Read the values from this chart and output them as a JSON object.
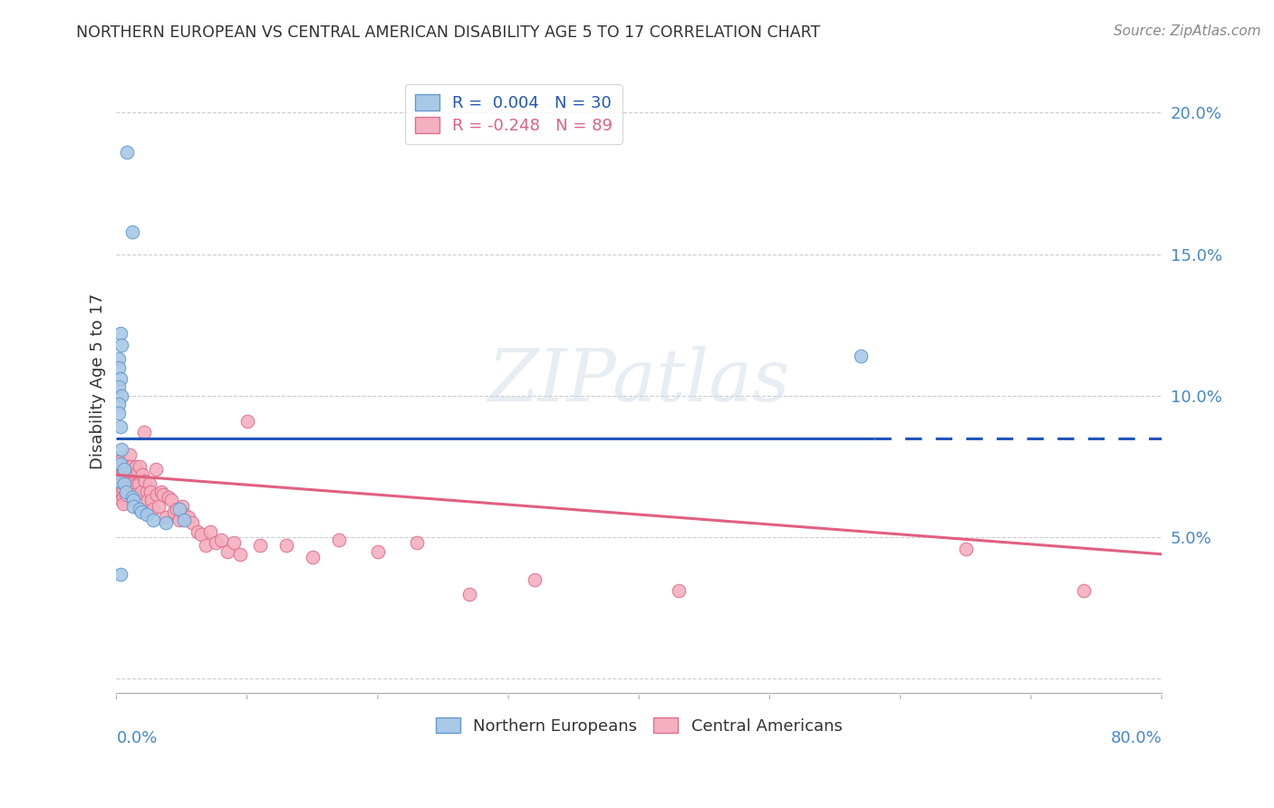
{
  "title": "NORTHERN EUROPEAN VS CENTRAL AMERICAN DISABILITY AGE 5 TO 17 CORRELATION CHART",
  "source": "Source: ZipAtlas.com",
  "ylabel": "Disability Age 5 to 17",
  "ytick_vals": [
    0.0,
    0.05,
    0.1,
    0.15,
    0.2
  ],
  "ytick_labels": [
    "",
    "5.0%",
    "10.0%",
    "15.0%",
    "20.0%"
  ],
  "xlim": [
    0.0,
    0.8
  ],
  "ylim": [
    -0.005,
    0.215
  ],
  "ne_color": "#a8c8e8",
  "ca_color": "#f4afc0",
  "ne_edge_color": "#6699cc",
  "ca_edge_color": "#e0708a",
  "ne_line_color": "#2255bb",
  "ca_line_color": "#e06080",
  "watermark": "ZIPatlas",
  "ne_line_y": 0.085,
  "ne_line_solid_end": 0.58,
  "ca_line_start_y": 0.072,
  "ca_line_end_y": 0.044,
  "ne_points_x": [
    0.008,
    0.012,
    0.003,
    0.004,
    0.002,
    0.002,
    0.003,
    0.002,
    0.004,
    0.002,
    0.002,
    0.003,
    0.004,
    0.003,
    0.006,
    0.002,
    0.006,
    0.007,
    0.012,
    0.013,
    0.013,
    0.018,
    0.019,
    0.023,
    0.028,
    0.038,
    0.048,
    0.052,
    0.57,
    0.003
  ],
  "ne_points_y": [
    0.186,
    0.158,
    0.122,
    0.118,
    0.113,
    0.11,
    0.106,
    0.103,
    0.1,
    0.097,
    0.094,
    0.089,
    0.081,
    0.076,
    0.074,
    0.07,
    0.069,
    0.066,
    0.064,
    0.063,
    0.061,
    0.06,
    0.059,
    0.058,
    0.056,
    0.055,
    0.06,
    0.056,
    0.114,
    0.037
  ],
  "ca_points_x": [
    0.002,
    0.002,
    0.002,
    0.002,
    0.002,
    0.003,
    0.003,
    0.003,
    0.003,
    0.003,
    0.003,
    0.003,
    0.003,
    0.004,
    0.004,
    0.004,
    0.004,
    0.004,
    0.005,
    0.005,
    0.005,
    0.005,
    0.005,
    0.006,
    0.006,
    0.006,
    0.007,
    0.007,
    0.007,
    0.008,
    0.008,
    0.008,
    0.009,
    0.01,
    0.01,
    0.01,
    0.011,
    0.012,
    0.013,
    0.014,
    0.015,
    0.016,
    0.017,
    0.018,
    0.019,
    0.02,
    0.021,
    0.022,
    0.023,
    0.024,
    0.025,
    0.026,
    0.027,
    0.028,
    0.03,
    0.031,
    0.032,
    0.034,
    0.036,
    0.038,
    0.04,
    0.042,
    0.044,
    0.046,
    0.048,
    0.05,
    0.052,
    0.055,
    0.058,
    0.062,
    0.065,
    0.068,
    0.072,
    0.076,
    0.08,
    0.085,
    0.09,
    0.095,
    0.1,
    0.11,
    0.13,
    0.15,
    0.17,
    0.2,
    0.23,
    0.27,
    0.32,
    0.43,
    0.65,
    0.74
  ],
  "ca_points_y": [
    0.077,
    0.074,
    0.072,
    0.07,
    0.067,
    0.077,
    0.074,
    0.071,
    0.069,
    0.066,
    0.074,
    0.071,
    0.068,
    0.075,
    0.072,
    0.069,
    0.066,
    0.063,
    0.073,
    0.07,
    0.067,
    0.064,
    0.062,
    0.076,
    0.073,
    0.069,
    0.072,
    0.068,
    0.065,
    0.075,
    0.071,
    0.067,
    0.069,
    0.079,
    0.075,
    0.071,
    0.069,
    0.073,
    0.068,
    0.065,
    0.075,
    0.073,
    0.069,
    0.075,
    0.066,
    0.072,
    0.087,
    0.07,
    0.066,
    0.063,
    0.069,
    0.066,
    0.063,
    0.06,
    0.074,
    0.065,
    0.061,
    0.066,
    0.065,
    0.057,
    0.064,
    0.063,
    0.059,
    0.06,
    0.056,
    0.061,
    0.058,
    0.057,
    0.055,
    0.052,
    0.051,
    0.047,
    0.052,
    0.048,
    0.049,
    0.045,
    0.048,
    0.044,
    0.091,
    0.047,
    0.047,
    0.043,
    0.049,
    0.045,
    0.048,
    0.03,
    0.035,
    0.031,
    0.046,
    0.031
  ]
}
